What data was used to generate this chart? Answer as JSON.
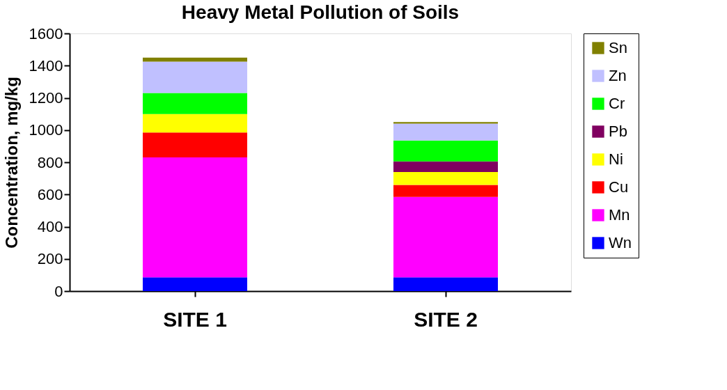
{
  "chart_data": {
    "type": "bar",
    "title": "Heavy Metal Pollution of Soils",
    "ylabel": "Concentration, mg/kg",
    "categories": [
      "SITE 1",
      "SITE 2"
    ],
    "stacked": true,
    "legend": "right",
    "grid": false,
    "ylim": [
      0,
      1600
    ],
    "yticks": [
      0,
      200,
      400,
      600,
      800,
      1000,
      1200,
      1400,
      1600
    ],
    "series": [
      {
        "name": "Wn",
        "color": "#0000ff",
        "values": [
          85,
          85
        ]
      },
      {
        "name": "Mn",
        "color": "#ff00ff",
        "values": [
          745,
          500
        ]
      },
      {
        "name": "Cu",
        "color": "#ff0000",
        "values": [
          155,
          75
        ]
      },
      {
        "name": "Ni",
        "color": "#ffff00",
        "values": [
          115,
          80
        ]
      },
      {
        "name": "Pb",
        "color": "#800060",
        "values": [
          0,
          65
        ]
      },
      {
        "name": "Cr",
        "color": "#00ff00",
        "values": [
          130,
          130
        ]
      },
      {
        "name": "Zn",
        "color": "#c0c0ff",
        "values": [
          195,
          105
        ]
      },
      {
        "name": "Sn",
        "color": "#808000",
        "values": [
          25,
          10
        ]
      }
    ]
  }
}
